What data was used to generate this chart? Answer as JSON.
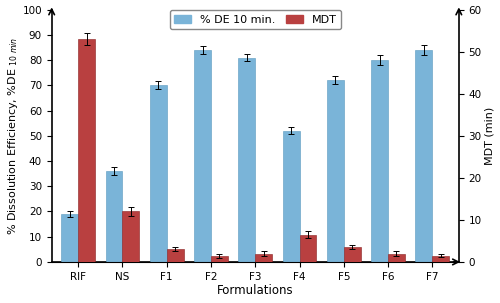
{
  "categories": [
    "RIF",
    "NS",
    "F1",
    "F2",
    "F3",
    "F4",
    "F5",
    "F6",
    "F7"
  ],
  "de_values": [
    19,
    36,
    70,
    84,
    81,
    52,
    72,
    80,
    84
  ],
  "de_errors": [
    1.0,
    1.5,
    1.5,
    1.5,
    1.5,
    1.5,
    1.5,
    2.0,
    2.0
  ],
  "mdt_values": [
    53,
    12,
    3,
    1.5,
    2,
    6.5,
    3.5,
    2,
    1.5
  ],
  "mdt_errors": [
    1.5,
    1.0,
    0.5,
    0.5,
    0.5,
    0.8,
    0.5,
    0.5,
    0.3
  ],
  "de_color": "#7ab4d8",
  "mdt_color": "#b94040",
  "bar_width": 0.38,
  "ylim_left": [
    0,
    100
  ],
  "ylim_right": [
    0,
    60
  ],
  "yticks_left": [
    0,
    10,
    20,
    30,
    40,
    50,
    60,
    70,
    80,
    90,
    100
  ],
  "yticks_right": [
    0,
    10,
    20,
    30,
    40,
    50,
    60
  ],
  "xlabel": "Formulations",
  "ylabel_left": "% Dissolution Efficiency, %DE",
  "ylabel_subscript": "10 min",
  "ylabel_right": "MDT (min)",
  "legend_de": "% DE 10 min.",
  "legend_mdt": "MDT",
  "bg_color": "#ffffff",
  "axis_fontsize": 8,
  "tick_fontsize": 7.5,
  "legend_fontsize": 8
}
